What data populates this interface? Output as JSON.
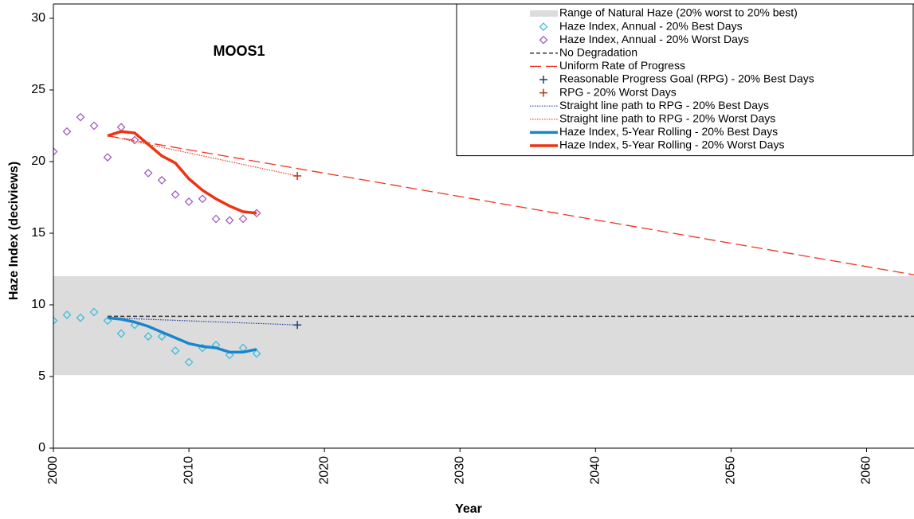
{
  "chart_data": {
    "type": "line",
    "title": "MOOS1",
    "x_label": "Year",
    "y_label": "Haze Index (deciviews)",
    "xlim": [
      2000,
      2063.5
    ],
    "ylim": [
      0,
      31
    ],
    "xticks": [
      2000,
      2010,
      2020,
      2030,
      2040,
      2050,
      2060
    ],
    "yticks": [
      0,
      5,
      10,
      15,
      20,
      25,
      30
    ],
    "legend": "upper right",
    "series": [
      {
        "name": "Range of Natural Haze (20% worst to 20% best)",
        "style": "band",
        "color": "#dcdcdc",
        "x": [
          2000,
          2063.5
        ],
        "low": [
          5.1,
          5.1
        ],
        "values": [
          12,
          12
        ]
      },
      {
        "name": "Haze Index, Annual - 20% Best Days",
        "style": "diamond",
        "color": "#33bbdd",
        "x": [
          2000,
          2001,
          2002,
          2003,
          2004,
          2005,
          2006,
          2007,
          2008,
          2009,
          2010,
          2011,
          2012,
          2013,
          2014,
          2015
        ],
        "values": [
          8.9,
          9.3,
          9.1,
          9.5,
          8.9,
          8.0,
          8.6,
          7.8,
          7.8,
          6.8,
          6.0,
          7.0,
          7.2,
          6.5,
          7.0,
          6.6
        ]
      },
      {
        "name": "Haze Index, Annual - 20% Worst Days",
        "style": "diamond",
        "color": "#9955bb",
        "x": [
          2000,
          2001,
          2002,
          2003,
          2004,
          2005,
          2006,
          2007,
          2008,
          2009,
          2010,
          2011,
          2012,
          2013,
          2014,
          2015
        ],
        "values": [
          20.7,
          22.1,
          23.1,
          22.5,
          20.3,
          22.4,
          21.5,
          19.2,
          18.7,
          17.7,
          17.2,
          17.4,
          16.0,
          15.9,
          16.0,
          16.4
        ]
      },
      {
        "name": "No Degradation",
        "style": "dashed",
        "color": "#333333",
        "x": [
          2004,
          2063.5
        ],
        "values": [
          9.2,
          9.2
        ]
      },
      {
        "name": "Uniform Rate of Progress",
        "style": "longdash",
        "color": "#ee3322",
        "x": [
          2004,
          2063.5
        ],
        "values": [
          21.8,
          12.1
        ]
      },
      {
        "name": "Reasonable Progress Goal (RPG) - 20% Best Days",
        "style": "plus",
        "color": "#1f3f7f",
        "x": [
          2018
        ],
        "values": [
          8.6
        ]
      },
      {
        "name": "RPG - 20% Worst Days",
        "style": "plus",
        "color": "#bb3311",
        "x": [
          2018
        ],
        "values": [
          19.0
        ]
      },
      {
        "name": "Straight line path to RPG - 20% Best Days",
        "style": "dotted",
        "color": "#1f3f9f",
        "x": [
          2004,
          2018
        ],
        "values": [
          9.1,
          8.6
        ]
      },
      {
        "name": "Straight line path to RPG - 20% Worst Days",
        "style": "dotted",
        "color": "#ee3322",
        "x": [
          2004,
          2018
        ],
        "values": [
          21.8,
          19.0
        ]
      },
      {
        "name": "Haze Index, 5-Year Rolling - 20% Best Days",
        "style": "line",
        "color": "#1a85cc",
        "x": [
          2004,
          2005,
          2006,
          2007,
          2008,
          2009,
          2010,
          2011,
          2012,
          2013,
          2014,
          2015
        ],
        "values": [
          9.1,
          9.0,
          8.8,
          8.5,
          8.1,
          7.7,
          7.3,
          7.1,
          7.0,
          6.7,
          6.7,
          6.9
        ]
      },
      {
        "name": "Haze Index, 5-Year Rolling - 20% Worst Days",
        "style": "line",
        "color": "#ee3311",
        "x": [
          2004,
          2005,
          2006,
          2007,
          2008,
          2009,
          2010,
          2011,
          2012,
          2013,
          2014,
          2015
        ],
        "values": [
          21.8,
          22.1,
          22.0,
          21.2,
          20.4,
          19.9,
          18.8,
          18.0,
          17.4,
          16.9,
          16.5,
          16.4
        ]
      }
    ]
  }
}
